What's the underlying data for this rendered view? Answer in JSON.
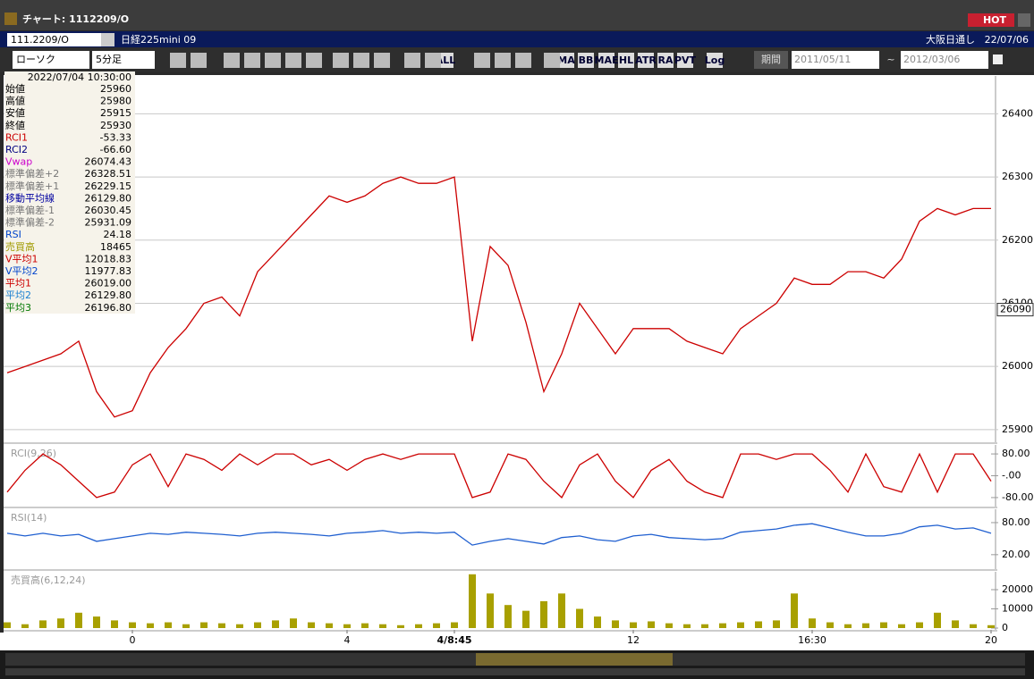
{
  "window": {
    "title": "チャート: 1112209/O",
    "hot": "HOT"
  },
  "symbol_bar": {
    "code": "111.2209/O",
    "name": "日経225mini 09",
    "market": "大阪日通し",
    "date": "22/07/06"
  },
  "toolbar": {
    "chart_type": "ローソク",
    "interval": "5分足",
    "icons": [
      "ALL",
      "MA",
      "BB",
      "MAE",
      "HL",
      "ATR",
      "RA",
      "PVT",
      "Log"
    ],
    "period": "期間",
    "from": "2011/05/11",
    "separator": "~",
    "to": "2012/03/06"
  },
  "info": {
    "datetime": "2022/07/04  10:30:00",
    "rows": [
      {
        "label": "始値",
        "value": "25960",
        "color": "#000000"
      },
      {
        "label": "高値",
        "value": "25980",
        "color": "#000000"
      },
      {
        "label": "安値",
        "value": "25915",
        "color": "#000000"
      },
      {
        "label": "終値",
        "value": "25930",
        "color": "#000000"
      },
      {
        "label": "RCI1",
        "value": "-53.33",
        "color": "#cc0000"
      },
      {
        "label": "RCI2",
        "value": "-66.60",
        "color": "#000080"
      },
      {
        "label": "Vwap",
        "value": "26074.43",
        "color": "#cc00cc"
      },
      {
        "label": "標準偏差+2",
        "value": "26328.51",
        "color": "#777777"
      },
      {
        "label": "標準偏差+1",
        "value": "26229.15",
        "color": "#777777"
      },
      {
        "label": "移動平均線",
        "value": "26129.80",
        "color": "#0000a0"
      },
      {
        "label": "標準偏差-1",
        "value": "26030.45",
        "color": "#777777"
      },
      {
        "label": "標準偏差-2",
        "value": "25931.09",
        "color": "#777777"
      },
      {
        "label": "RSI",
        "value": "24.18",
        "color": "#0044cc"
      },
      {
        "label": "売買高",
        "value": "18465",
        "color": "#a09a00"
      },
      {
        "label": "V平均1",
        "value": "12018.83",
        "color": "#cc0000"
      },
      {
        "label": "V平均2",
        "value": "11977.83",
        "color": "#0044cc"
      },
      {
        "label": "平均1",
        "value": "26019.00",
        "color": "#cc0000"
      },
      {
        "label": "平均2",
        "value": "26129.80",
        "color": "#1a7fd0"
      },
      {
        "label": "平均3",
        "value": "26196.80",
        "color": "#007700"
      }
    ]
  },
  "chart_data": [
    {
      "type": "line",
      "color": "#cc0000",
      "values": [
        25990,
        26000,
        26010,
        26020,
        26040,
        25960,
        25920,
        25930,
        25990,
        26030,
        26060,
        26100,
        26110,
        26080,
        26150,
        26180,
        26210,
        26240,
        26270,
        26260,
        26270,
        26290,
        26300,
        26290,
        26290,
        26300,
        26040,
        26190,
        26160,
        26070,
        25960,
        26020,
        26100,
        26060,
        26020,
        26060,
        26060,
        26060,
        26040,
        26030,
        26020,
        26060,
        26080,
        26100,
        26140,
        26130,
        26130,
        26150,
        26150,
        26140,
        26170,
        26230,
        26250,
        26240,
        26250,
        26250
      ],
      "xlim": [
        0,
        55
      ],
      "xticks": [
        {
          "value": 7,
          "label": "0"
        },
        {
          "value": 19,
          "label": "4"
        },
        {
          "value": 25,
          "label": "4/8:45"
        },
        {
          "value": 35,
          "label": "12"
        },
        {
          "value": 45,
          "label": "16:30"
        },
        {
          "value": 55,
          "label": "20"
        }
      ],
      "ylim": [
        25880,
        26460
      ],
      "yticks": [
        25900,
        26000,
        26100,
        26200,
        26300,
        26400
      ],
      "current_value": 26090,
      "grid": true
    },
    {
      "type": "line",
      "label": "RCI(9,26)",
      "color": "#cc0000",
      "values": [
        -60,
        20,
        80,
        40,
        -20,
        -80,
        -60,
        40,
        80,
        -40,
        80,
        60,
        20,
        80,
        40,
        80,
        80,
        40,
        60,
        20,
        60,
        80,
        60,
        80,
        80,
        80,
        -80,
        -60,
        80,
        60,
        -20,
        -80,
        40,
        80,
        -20,
        -80,
        20,
        60,
        -20,
        -60,
        -80,
        80,
        80,
        60,
        80,
        80,
        20,
        -60,
        80,
        -40,
        -60,
        80,
        -60,
        80,
        80,
        -20
      ],
      "ylim": [
        -113,
        113
      ],
      "yticks": [
        {
          "value": 80,
          "label": "80.00"
        },
        {
          "value": 0,
          "label": "-.00"
        },
        {
          "value": -80,
          "label": "-80.00"
        }
      ]
    },
    {
      "type": "line",
      "label": "RSI(14)",
      "color": "#1f5fd0",
      "values": [
        60,
        55,
        60,
        55,
        58,
        45,
        50,
        55,
        60,
        58,
        62,
        60,
        58,
        55,
        60,
        62,
        60,
        58,
        55,
        60,
        62,
        65,
        60,
        62,
        60,
        62,
        38,
        45,
        50,
        45,
        40,
        52,
        55,
        48,
        45,
        55,
        58,
        52,
        50,
        48,
        50,
        62,
        65,
        68,
        75,
        78,
        70,
        62,
        55,
        55,
        60,
        72,
        75,
        68,
        70,
        60
      ],
      "ylim": [
        -7,
        105
      ],
      "yticks": [
        {
          "value": 80,
          "label": "80.00"
        },
        {
          "value": 20,
          "label": "20.00"
        }
      ]
    },
    {
      "type": "bar",
      "label": "売買高(6,12,24)",
      "color": "#a8a000",
      "values": [
        3000,
        2000,
        4000,
        5000,
        8000,
        6000,
        4000,
        3000,
        2500,
        3000,
        2000,
        3000,
        2500,
        2000,
        3000,
        4000,
        5000,
        3000,
        2500,
        2000,
        2500,
        2000,
        1500,
        2000,
        2500,
        3000,
        28000,
        18000,
        12000,
        9000,
        14000,
        18000,
        10000,
        6000,
        4000,
        3000,
        3500,
        2500,
        2000,
        2000,
        2500,
        3000,
        3500,
        4000,
        18000,
        5000,
        3000,
        2000,
        2500,
        3000,
        2000,
        3000,
        8000,
        4000,
        2000,
        1500
      ],
      "ylim": [
        -930,
        29300
      ],
      "yticks": [
        0,
        10000,
        20000
      ]
    }
  ]
}
